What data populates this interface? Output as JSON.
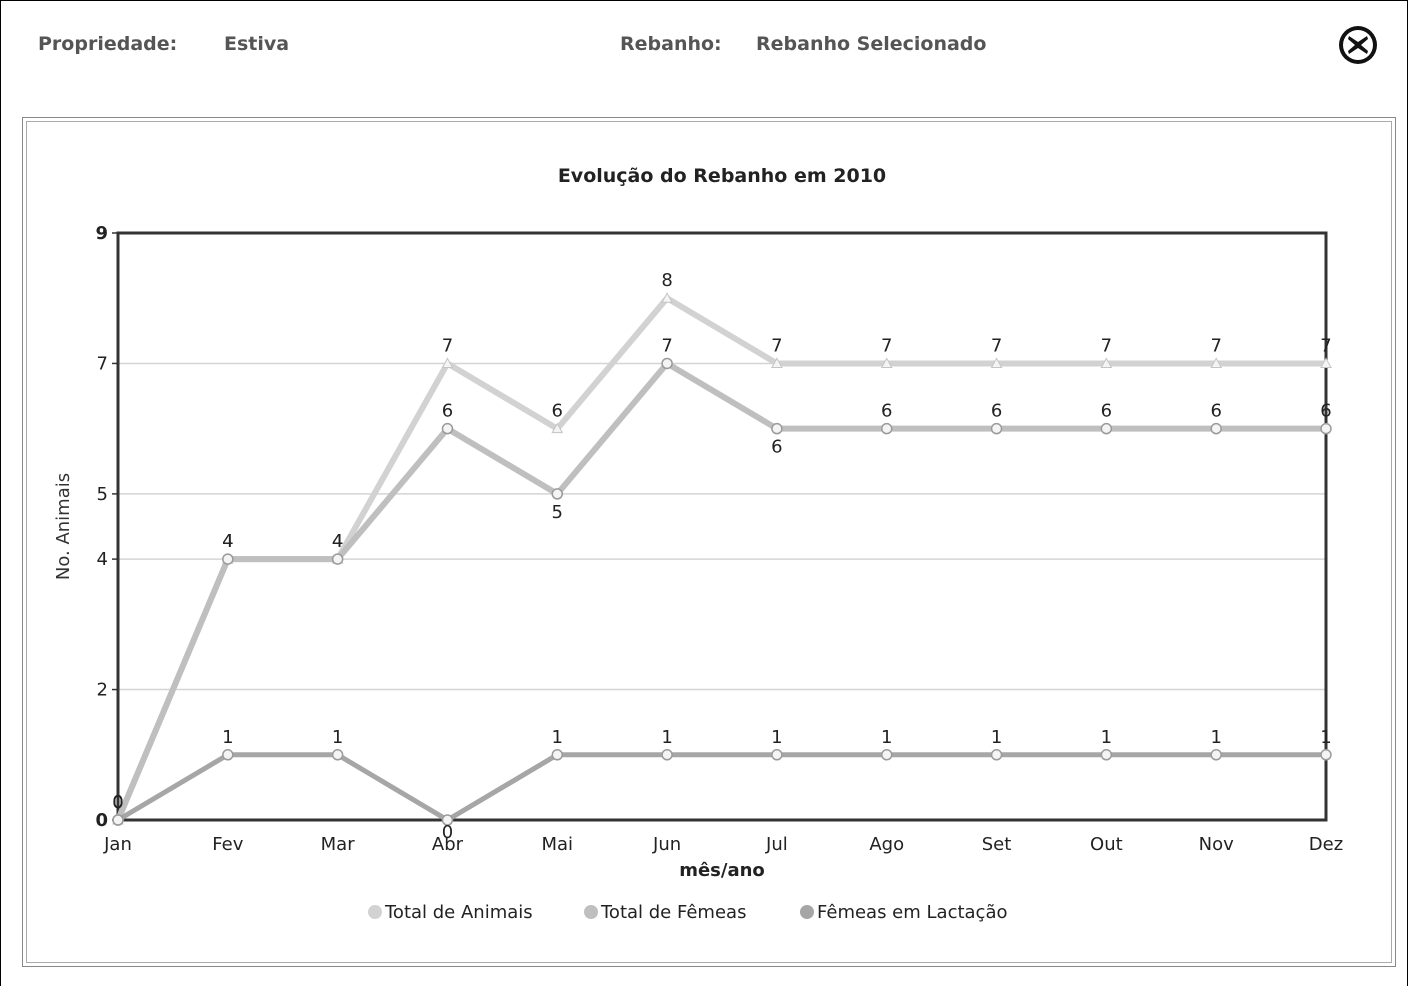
{
  "header": {
    "propriedade_label": "Propriedade:",
    "propriedade_value": "Estiva",
    "rebanho_label": "Rebanho:",
    "rebanho_value": "Rebanho Selecionado",
    "close_icon": "close-circle-x-icon"
  },
  "chart_data": {
    "type": "line",
    "title": "Evolução do Rebanho em 2010",
    "xlabel": "mês/ano",
    "ylabel": "No. Animais",
    "categories": [
      "Jan",
      "Fev",
      "Mar",
      "Abr",
      "Mai",
      "Jun",
      "Jul",
      "Ago",
      "Set",
      "Out",
      "Nov",
      "Dez"
    ],
    "ylim": [
      0,
      9
    ],
    "yticks": [
      "0",
      "2",
      "4",
      "5",
      "7",
      "9"
    ],
    "grid": true,
    "legend_position": "bottom",
    "series": [
      {
        "name": "Total de Animais",
        "color": "#d2d2d2",
        "values": [
          0,
          4,
          4,
          7,
          6,
          8,
          7,
          7,
          7,
          7,
          7,
          7
        ],
        "labels": [
          "0",
          "4",
          "4",
          "7",
          "6",
          "8",
          "7",
          "7",
          "7",
          "7",
          "7",
          "7"
        ]
      },
      {
        "name": "Total de Fêmeas",
        "color": "#bfbfbf",
        "values": [
          0,
          4,
          4,
          6,
          5,
          7,
          6,
          6,
          6,
          6,
          6,
          6
        ],
        "labels": [
          "0",
          "4",
          "4",
          "6",
          "5",
          "7",
          "6",
          "6",
          "6",
          "6",
          "6",
          "6"
        ]
      },
      {
        "name": "Fêmeas em Lactação",
        "color": "#a6a6a6",
        "values": [
          0,
          1,
          1,
          0,
          1,
          1,
          1,
          1,
          1,
          1,
          1,
          1
        ],
        "labels": [
          "0",
          "1",
          "1",
          "0",
          "1",
          "1",
          "1",
          "1",
          "1",
          "1",
          "1",
          "1"
        ]
      }
    ]
  }
}
